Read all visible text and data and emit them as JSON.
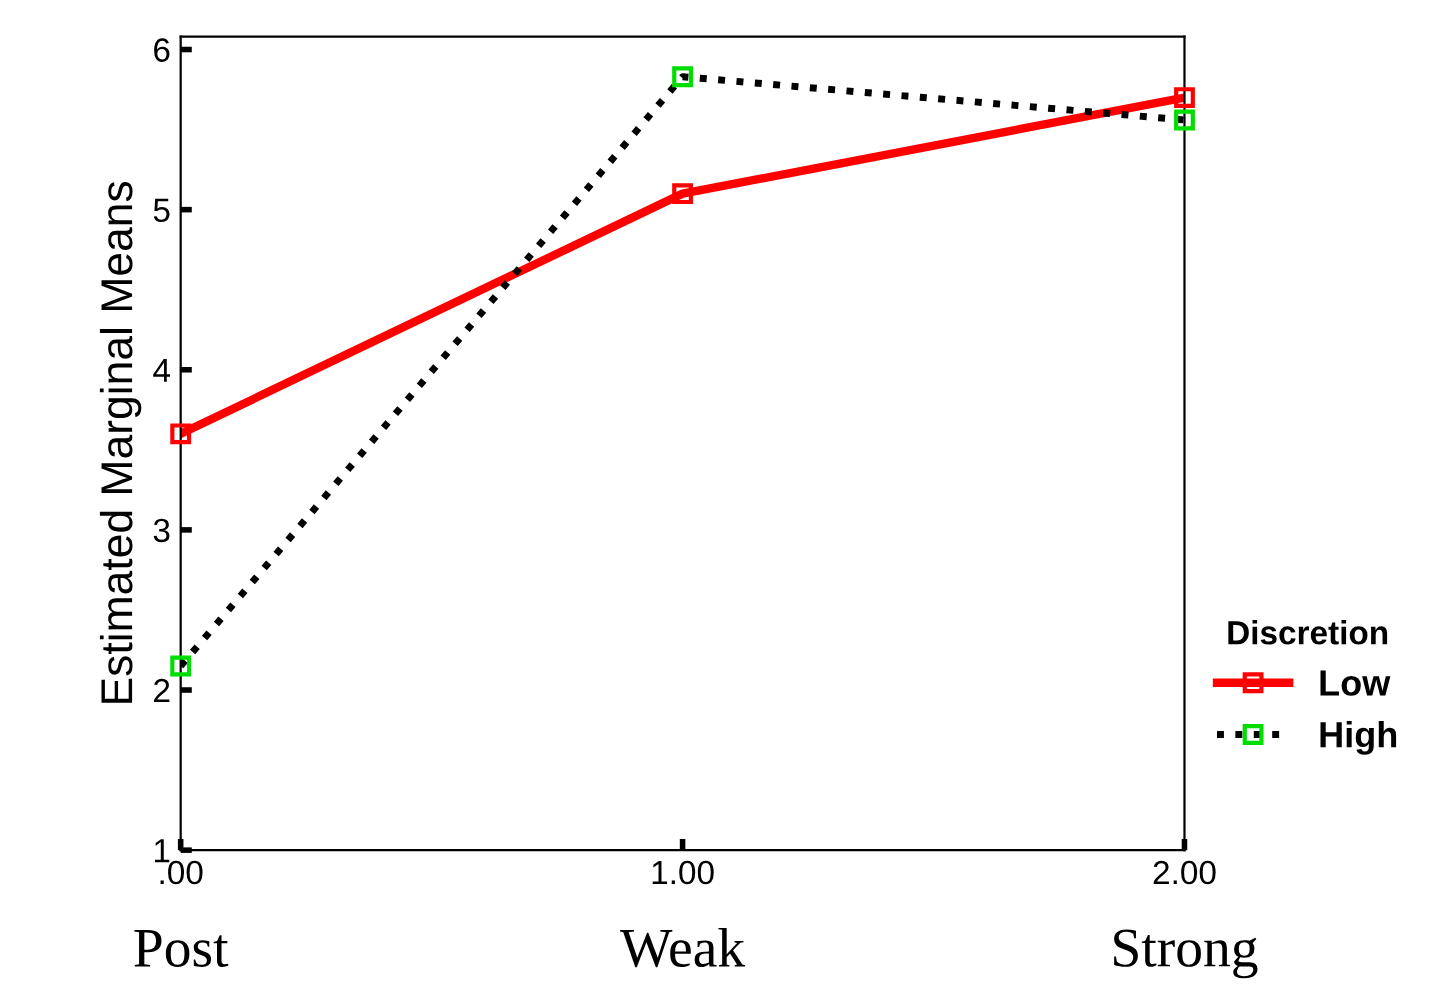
{
  "chart_data": {
    "type": "line",
    "ylabel": "Estimated Marginal Means",
    "legend_title": "Discretion",
    "categories": [
      ".00",
      "1.00",
      "2.00"
    ],
    "annotations": [
      "Post",
      "Weak",
      "Strong"
    ],
    "ylim": [
      1,
      6.08
    ],
    "yticks": [
      1,
      2,
      3,
      4,
      5,
      6
    ],
    "grid": false,
    "legend": "right",
    "marker": "square",
    "series": [
      {
        "name": "Low",
        "color": "#ff0000",
        "values": [
          3.6,
          5.1,
          5.7
        ],
        "line_style": "solid"
      },
      {
        "name": "High",
        "color": "#000000",
        "colors": [
          "#00dd00",
          "#00dd00",
          "#00dd00"
        ],
        "values": [
          2.15,
          5.83,
          5.56
        ],
        "line_style": "dotted"
      }
    ]
  }
}
